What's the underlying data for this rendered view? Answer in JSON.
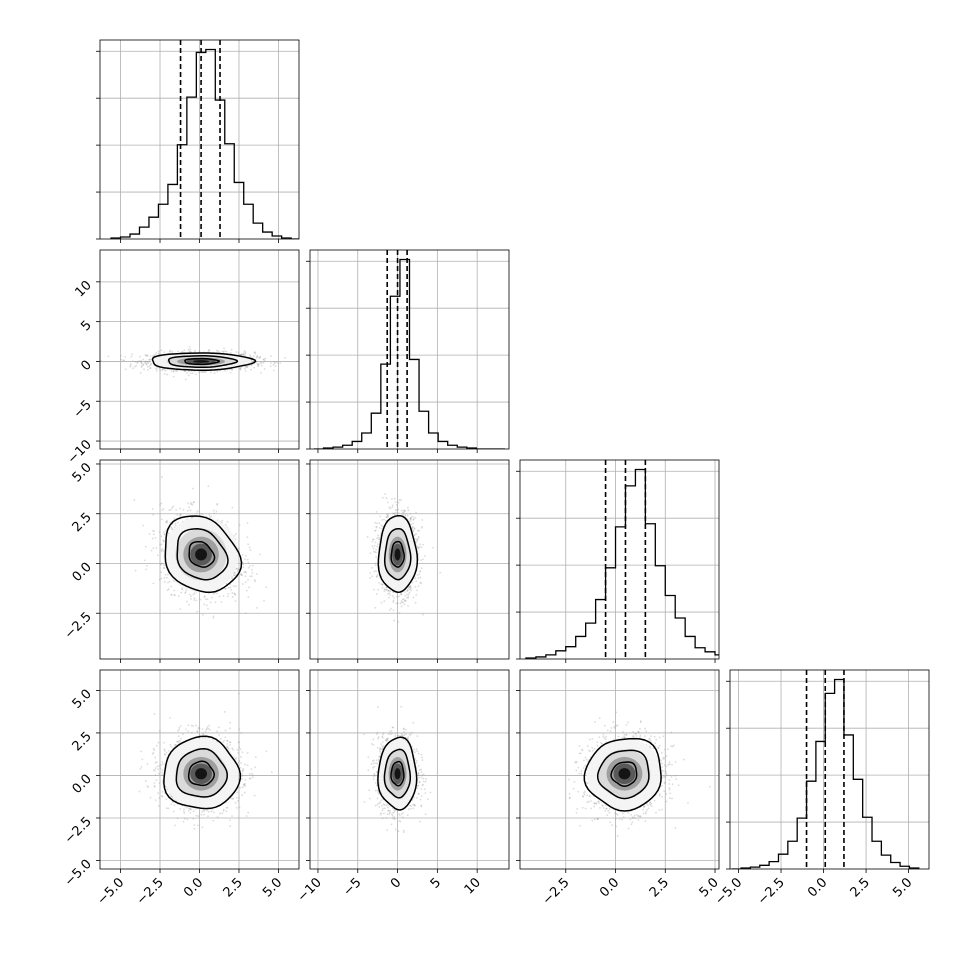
{
  "chart_data": {
    "type": "corner",
    "title": "",
    "variables": [
      "",
      "",
      "",
      ""
    ],
    "grid": true,
    "axis_ranges": [
      [
        -6.3,
        6.3
      ],
      [
        -11,
        14
      ],
      [
        -4.8,
        5.2
      ],
      [
        -5.5,
        6.2
      ]
    ],
    "ticks": [
      {
        "values": [
          -5.0,
          -2.5,
          0.0,
          2.5,
          5.0
        ],
        "labels": [
          "−5.0",
          "−2.5",
          "0.0",
          "2.5",
          "5.0"
        ]
      },
      {
        "values": [
          -10,
          -5,
          0,
          5,
          10
        ],
        "labels": [
          "−10",
          "−5",
          "0",
          "5",
          "10"
        ]
      },
      {
        "values": [
          -2.5,
          0.0,
          2.5,
          5.0
        ],
        "labels": [
          "−2.5",
          "0.0",
          "2.5",
          "5.0"
        ]
      },
      {
        "values": [
          -5.0,
          -2.5,
          0.0,
          2.5,
          5.0
        ],
        "labels": [
          "−5.0",
          "−2.5",
          "0.0",
          "2.5",
          "5.0"
        ]
      }
    ],
    "quantiles": [
      [
        -1.2,
        0.1,
        1.3
      ],
      [
        -1.3,
        0.0,
        1.2
      ],
      [
        -0.5,
        0.5,
        1.5
      ],
      [
        -1.0,
        0.1,
        1.2
      ]
    ],
    "histograms": [
      {
        "bin_start": -5.6,
        "bin_width": 0.6,
        "counts": [
          1,
          2,
          5,
          12,
          22,
          35,
          55,
          95,
          143,
          188,
          191,
          140,
          96,
          57,
          35,
          16,
          7,
          3,
          1,
          0
        ]
      },
      {
        "bin_start": -10.5,
        "bin_width": 1.2,
        "counts": [
          0,
          1,
          2,
          4,
          8,
          17,
          38,
          90,
          162,
          201,
          95,
          40,
          17,
          8,
          4,
          2,
          1,
          0,
          0,
          0
        ]
      },
      {
        "bin_start": -4.5,
        "bin_width": 0.5,
        "counts": [
          1,
          2,
          4,
          8,
          12,
          22,
          35,
          58,
          89,
          129,
          169,
          185,
          132,
          91,
          62,
          40,
          22,
          11,
          7,
          4
        ]
      },
      {
        "bin_start": -5.4,
        "bin_width": 0.55,
        "counts": [
          0,
          1,
          2,
          4,
          8,
          16,
          30,
          55,
          95,
          138,
          190,
          205,
          145,
          97,
          56,
          30,
          15,
          7,
          3,
          1
        ]
      }
    ],
    "gaussians": [
      {
        "mean": 0.1,
        "sd": 1.25
      },
      {
        "mean": 0.0,
        "sd": 1.25
      },
      {
        "mean": 0.45,
        "sd": 1.0
      },
      {
        "mean": 0.1,
        "sd": 1.1
      }
    ],
    "correlations": {
      "1-0": 0.0,
      "2-0": -0.2,
      "2-1": 0.0,
      "3-0": 0.0,
      "3-1": 0.0,
      "3-2": 0.05
    },
    "scale_overrides": {
      "1-0": [
        1.35,
        0.45
      ]
    },
    "contour_levels": [
      0.5,
      1.0,
      1.5
    ]
  }
}
